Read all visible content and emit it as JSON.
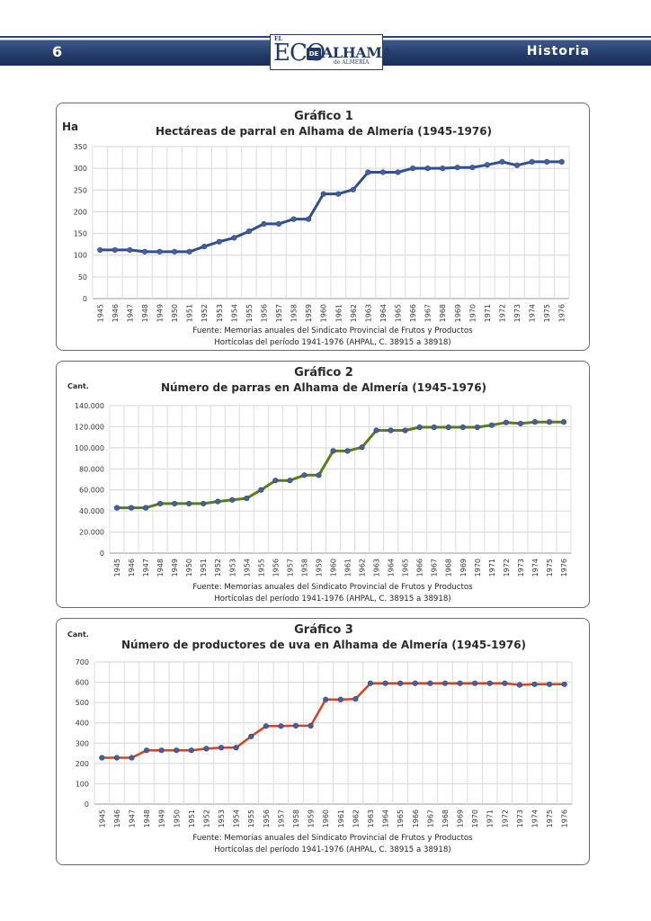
{
  "header": {
    "page_number": "6",
    "section": "Historia",
    "logo": {
      "el": "EL",
      "eco": "ECO",
      "de": "DE",
      "alhama": "ALHAMA",
      "sub": "de ALMERÍA"
    }
  },
  "colors": {
    "band": "#223a68",
    "chart1_line": "#2e5090",
    "chart2_line": "#5b7d14",
    "chart3_line": "#d8411e",
    "marker": "#44609e"
  },
  "chart_data": [
    {
      "type": "line",
      "title": "Gráfico 1",
      "subtitle": "Hectáreas de parral en Alhama de Almería (1945-1976)",
      "ylabel": "Ha",
      "xlabel": "",
      "categories": [
        "1945",
        "1946",
        "1947",
        "1948",
        "1949",
        "1950",
        "1951",
        "1952",
        "1953",
        "1954",
        "1955",
        "1956",
        "1957",
        "1958",
        "1959",
        "1960",
        "1961",
        "1962",
        "1963",
        "1964",
        "1965",
        "1966",
        "1967",
        "1968",
        "1969",
        "1970",
        "1971",
        "1972",
        "1973",
        "1974",
        "1975",
        "1976"
      ],
      "values": [
        112,
        112,
        112,
        108,
        108,
        108,
        108,
        120,
        131,
        140,
        155,
        172,
        172,
        183,
        183,
        241,
        241,
        251,
        291,
        291,
        291,
        300,
        300,
        300,
        302,
        302,
        308,
        315,
        307,
        315,
        315,
        315
      ],
      "ylim": [
        0,
        350
      ],
      "yticks": [
        "0",
        "50",
        "100",
        "150",
        "200",
        "250",
        "300",
        "350"
      ],
      "grid": true,
      "source_line1": "Fuente: Memorias anuales del Sindicato Provincial de Frutos y Productos",
      "source_line2": "Hortícolas del período 1941-1976 (AHPAL, C. 38915 a 38918)"
    },
    {
      "type": "line",
      "title": "Gráfico 2",
      "subtitle": "Número de parras en Alhama de Almería (1945-1976)",
      "ylabel": "Cant.",
      "xlabel": "",
      "categories": [
        "1945",
        "1946",
        "1947",
        "1948",
        "1949",
        "1950",
        "1951",
        "1952",
        "1953",
        "1954",
        "1955",
        "1956",
        "1957",
        "1958",
        "1959",
        "1960",
        "1961",
        "1962",
        "1963",
        "1964",
        "1965",
        "1966",
        "1967",
        "1968",
        "1969",
        "1970",
        "1971",
        "1972",
        "1973",
        "1974",
        "1975",
        "1976"
      ],
      "values": [
        43000,
        43000,
        43000,
        47000,
        47000,
        47000,
        47000,
        49000,
        50500,
        52000,
        60000,
        69000,
        69000,
        74000,
        74000,
        97000,
        97000,
        100500,
        116500,
        116500,
        116500,
        119500,
        119500,
        119500,
        119500,
        119500,
        121500,
        124000,
        123000,
        124500,
        124500,
        124500
      ],
      "ylim": [
        0,
        140000
      ],
      "yticks": [
        "0",
        "20.000",
        "40.000",
        "60.000",
        "80.000",
        "100.000",
        "120.000",
        "140.000"
      ],
      "grid": true,
      "source_line1": "Fuente: Memorias anuales del Sindicato Provincial de Frutos y Productos",
      "source_line2": "Hortícolas del período 1941-1976 (AHPAL, C. 38915 a 38918)"
    },
    {
      "type": "line",
      "title": "Gráfico 3",
      "subtitle": "Número de productores de uva en Alhama de Almería (1945-1976)",
      "ylabel": "Cant.",
      "xlabel": "",
      "categories": [
        "1945",
        "1946",
        "1947",
        "1948",
        "1949",
        "1950",
        "1951",
        "1952",
        "1953",
        "1954",
        "1955",
        "1956",
        "1957",
        "1958",
        "1959",
        "1960",
        "1961",
        "1962",
        "1963",
        "1964",
        "1965",
        "1966",
        "1967",
        "1968",
        "1969",
        "1970",
        "1971",
        "1972",
        "1973",
        "1974",
        "1975",
        "1976"
      ],
      "values": [
        228,
        228,
        228,
        265,
        265,
        265,
        265,
        273,
        278,
        278,
        333,
        384,
        384,
        386,
        386,
        515,
        515,
        518,
        595,
        595,
        595,
        595,
        595,
        595,
        595,
        595,
        595,
        595,
        587,
        590,
        590,
        590
      ],
      "ylim": [
        0,
        700
      ],
      "yticks": [
        "0",
        "100",
        "200",
        "300",
        "400",
        "500",
        "600",
        "700"
      ],
      "grid": true,
      "source_line1": "Fuente: Memorias anuales del Sindicato Provincial de Frutos y Productos",
      "source_line2": "Hortícolas del período 1941-1976 (AHPAL, C. 38915 a 38918)"
    }
  ]
}
